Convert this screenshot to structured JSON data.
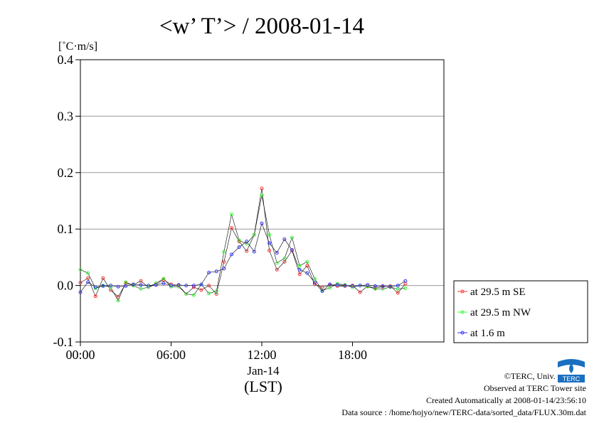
{
  "chart_data": {
    "type": "line",
    "title": "<w’ T’> / 2008-01-14",
    "ylabel": "[˚C·m/s]",
    "xlabel": "(LST)",
    "date_label": "Jan-14",
    "ylim": [
      -0.1,
      0.4
    ],
    "xlim_hours": [
      0,
      23.5
    ],
    "y_ticks": [
      -0.1,
      0.0,
      0.1,
      0.2,
      0.3,
      0.4
    ],
    "y_tick_labels": [
      "-0.1",
      "0.0",
      "0.1",
      "0.2",
      "0.3",
      "0.4"
    ],
    "x_ticks_hours": [
      0,
      6,
      12,
      18
    ],
    "x_tick_labels": [
      "00:00",
      "06:00",
      "12:00",
      "18:00"
    ],
    "grid": true,
    "legend_position": "right",
    "series": [
      {
        "name": "at 29.5 m SE",
        "color": "#ff3333",
        "values": [
          0.005,
          0.013,
          -0.019,
          0.013,
          -0.008,
          -0.02,
          0.004,
          0.001,
          0.008,
          -0.003,
          0.002,
          0.01,
          0.002,
          0.0,
          -0.015,
          -0.003,
          -0.008,
          0.0,
          -0.015,
          0.042,
          0.102,
          0.078,
          0.061,
          0.09,
          0.172,
          0.062,
          0.028,
          0.042,
          0.062,
          0.02,
          0.035,
          0.002,
          -0.003,
          0.001,
          -0.001,
          -0.001,
          0.0,
          -0.012,
          -0.001,
          -0.005,
          -0.002,
          -0.001,
          -0.013,
          0.003
        ]
      },
      {
        "name": "at 29.5 m NW",
        "color": "#33ff33",
        "values": [
          0.028,
          0.022,
          -0.005,
          0.0,
          -0.003,
          -0.027,
          0.006,
          0.0,
          -0.006,
          -0.003,
          0.004,
          0.012,
          -0.002,
          -0.002,
          -0.015,
          -0.017,
          0.002,
          -0.014,
          -0.01,
          0.06,
          0.126,
          0.08,
          0.074,
          0.09,
          0.16,
          0.09,
          0.04,
          0.048,
          0.085,
          0.035,
          0.042,
          0.012,
          -0.009,
          -0.004,
          0.003,
          0.001,
          -0.003,
          0.0,
          -0.002,
          -0.006,
          -0.006,
          -0.003,
          -0.006,
          -0.005
        ]
      },
      {
        "name": "at 1.6 m",
        "color": "#3333ff",
        "values": [
          -0.012,
          0.006,
          -0.003,
          -0.001,
          0.0,
          -0.002,
          -0.001,
          0.002,
          0.001,
          0.0,
          0.001,
          0.004,
          0.0,
          0.001,
          0.0,
          0.0,
          0.002,
          0.023,
          0.025,
          0.03,
          0.055,
          0.068,
          0.078,
          0.06,
          0.11,
          0.075,
          0.058,
          0.082,
          0.063,
          0.028,
          0.022,
          0.005,
          -0.01,
          0.002,
          0.001,
          0.0,
          -0.001,
          0.0,
          0.001,
          -0.001,
          -0.001,
          -0.002,
          0.0,
          0.008
        ]
      }
    ]
  },
  "footer": {
    "copyright": "©TERC, Univ. Tsukuba",
    "observed": "Observed at TERC Tower site",
    "created": "Created Automatically at 2008-01-14/23:56:10",
    "source": "Data source : /home/hojyo/new/TERC-data/sorted_data/FLUX.30m.dat"
  },
  "logo": {
    "text": "TERC",
    "color": "#1a6fc0"
  }
}
